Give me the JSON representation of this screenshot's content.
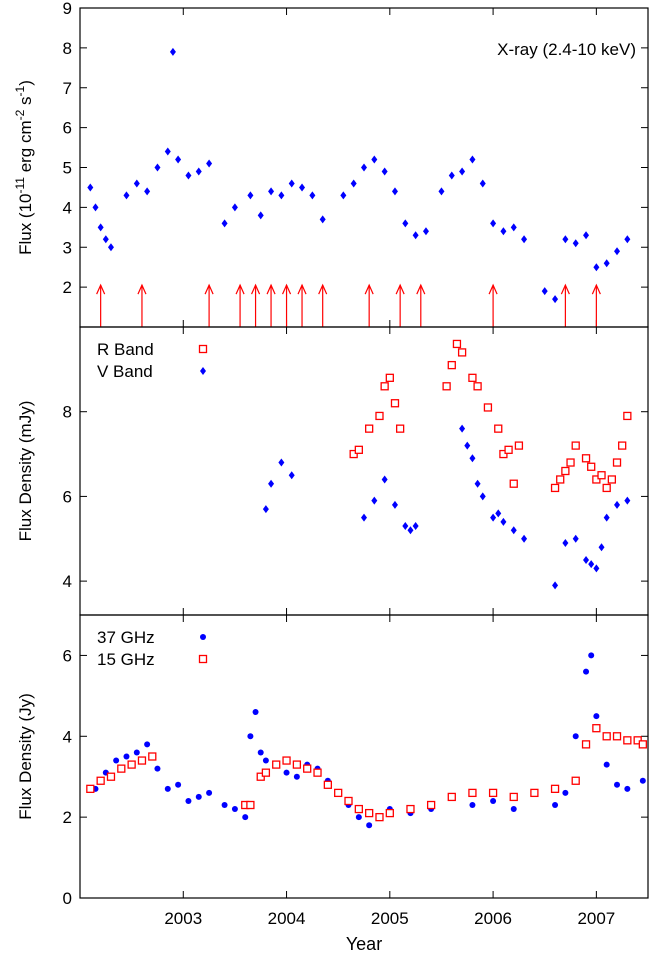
{
  "chart_data": [
    {
      "type": "scatter",
      "panel": "top",
      "annotation": "X-ray (2.4-10 keV)",
      "ylabel_parts": [
        "Flux (10",
        "-11",
        " erg cm",
        "-2",
        " s",
        "-1",
        ")"
      ],
      "ylim": [
        1,
        9
      ],
      "yticks": [
        2,
        3,
        4,
        5,
        6,
        7,
        8,
        9
      ],
      "xlim": [
        2002.0,
        2007.5
      ],
      "series": [
        {
          "color": "#0000ff",
          "marker": "diamond",
          "x": [
            2002.1,
            2002.15,
            2002.2,
            2002.25,
            2002.3,
            2002.45,
            2002.55,
            2002.65,
            2002.75,
            2002.85,
            2002.9,
            2002.95,
            2003.05,
            2003.15,
            2003.25,
            2003.4,
            2003.5,
            2003.65,
            2003.75,
            2003.85,
            2003.95,
            2004.05,
            2004.15,
            2004.25,
            2004.35,
            2004.55,
            2004.65,
            2004.75,
            2004.85,
            2004.95,
            2005.05,
            2005.15,
            2005.25,
            2005.35,
            2005.5,
            2005.6,
            2005.7,
            2005.8,
            2005.9,
            2006.0,
            2006.1,
            2006.2,
            2006.3,
            2006.5,
            2006.6,
            2006.7,
            2006.8,
            2006.9,
            2007.0,
            2007.1,
            2007.2,
            2007.3
          ],
          "y": [
            4.5,
            4.0,
            3.5,
            3.2,
            3.0,
            4.3,
            4.6,
            4.4,
            5.0,
            5.4,
            7.9,
            5.2,
            4.8,
            4.9,
            5.1,
            3.6,
            4.0,
            4.3,
            3.8,
            4.4,
            4.3,
            4.6,
            4.5,
            4.3,
            3.7,
            4.3,
            4.6,
            5.0,
            5.2,
            4.9,
            4.4,
            3.6,
            3.3,
            3.4,
            4.4,
            4.8,
            4.9,
            5.2,
            4.6,
            3.6,
            3.4,
            3.5,
            3.2,
            1.9,
            1.7,
            3.2,
            3.1,
            3.3,
            2.5,
            2.6,
            2.9,
            3.2
          ]
        }
      ],
      "arrows_x": [
        2002.2,
        2002.6,
        2003.25,
        2003.55,
        2003.7,
        2003.85,
        2004.0,
        2004.15,
        2004.35,
        2004.8,
        2005.1,
        2005.3,
        2006.0,
        2006.7,
        2007.0
      ],
      "arrow_color": "#ff0000"
    },
    {
      "type": "scatter",
      "panel": "middle",
      "ylabel": "Flux Density (mJy)",
      "ylim": [
        3.2,
        10.0
      ],
      "yticks": [
        4,
        6,
        8
      ],
      "xlim": [
        2002.0,
        2007.5
      ],
      "series": [
        {
          "name": "R Band",
          "color": "#ff0000",
          "marker": "square",
          "x": [
            2004.65,
            2004.7,
            2004.8,
            2004.9,
            2004.95,
            2005.0,
            2005.05,
            2005.1,
            2005.55,
            2005.6,
            2005.65,
            2005.7,
            2005.8,
            2005.85,
            2005.95,
            2006.05,
            2006.1,
            2006.15,
            2006.2,
            2006.25,
            2006.6,
            2006.65,
            2006.7,
            2006.75,
            2006.8,
            2006.9,
            2006.95,
            2007.0,
            2007.05,
            2007.1,
            2007.15,
            2007.2,
            2007.25,
            2007.3
          ],
          "y": [
            7.0,
            7.1,
            7.6,
            7.9,
            8.6,
            8.8,
            8.2,
            7.6,
            8.6,
            9.1,
            9.6,
            9.4,
            8.8,
            8.6,
            8.1,
            7.6,
            7.0,
            7.1,
            6.3,
            7.2,
            6.2,
            6.4,
            6.6,
            6.8,
            7.2,
            6.9,
            6.7,
            6.4,
            6.5,
            6.2,
            6.4,
            6.8,
            7.2,
            7.9
          ]
        },
        {
          "name": "V Band",
          "color": "#0000ff",
          "marker": "diamond",
          "x": [
            2003.8,
            2003.85,
            2003.95,
            2004.05,
            2004.75,
            2004.85,
            2004.95,
            2005.05,
            2005.15,
            2005.2,
            2005.25,
            2005.7,
            2005.75,
            2005.8,
            2005.85,
            2005.9,
            2006.0,
            2006.05,
            2006.1,
            2006.2,
            2006.3,
            2006.6,
            2006.7,
            2006.8,
            2006.9,
            2006.95,
            2007.0,
            2007.05,
            2007.1,
            2007.2,
            2007.3
          ],
          "y": [
            5.7,
            6.3,
            6.8,
            6.5,
            5.5,
            5.9,
            6.4,
            5.8,
            5.3,
            5.2,
            5.3,
            7.6,
            7.2,
            6.9,
            6.3,
            6.0,
            5.5,
            5.6,
            5.4,
            5.2,
            5.0,
            3.9,
            4.9,
            5.0,
            4.5,
            4.4,
            4.3,
            4.8,
            5.5,
            5.8,
            5.9
          ]
        }
      ]
    },
    {
      "type": "scatter",
      "panel": "bottom",
      "ylabel": "Flux Density (Jy)",
      "xlabel": "Year",
      "ylim": [
        0,
        7
      ],
      "yticks": [
        0,
        2,
        4,
        6
      ],
      "xlim": [
        2002.0,
        2007.5
      ],
      "xticks": [
        2003,
        2004,
        2005,
        2006,
        2007
      ],
      "series": [
        {
          "name": "37 GHz",
          "color": "#0000ff",
          "marker": "circle",
          "x": [
            2002.15,
            2002.25,
            2002.35,
            2002.45,
            2002.55,
            2002.65,
            2002.75,
            2002.85,
            2002.95,
            2003.05,
            2003.15,
            2003.25,
            2003.4,
            2003.5,
            2003.6,
            2003.65,
            2003.7,
            2003.75,
            2003.8,
            2003.9,
            2004.0,
            2004.1,
            2004.2,
            2004.3,
            2004.4,
            2004.5,
            2004.6,
            2004.7,
            2004.8,
            2004.9,
            2005.0,
            2005.2,
            2005.4,
            2005.6,
            2005.8,
            2006.0,
            2006.2,
            2006.4,
            2006.6,
            2006.7,
            2006.8,
            2006.9,
            2006.95,
            2007.0,
            2007.1,
            2007.2,
            2007.3,
            2007.45
          ],
          "y": [
            2.7,
            3.1,
            3.4,
            3.5,
            3.6,
            3.8,
            3.2,
            2.7,
            2.8,
            2.4,
            2.5,
            2.6,
            2.3,
            2.2,
            2.0,
            4.0,
            4.6,
            3.6,
            3.4,
            3.3,
            3.1,
            3.0,
            3.3,
            3.2,
            2.9,
            2.6,
            2.3,
            2.0,
            1.8,
            2.0,
            2.2,
            2.1,
            2.2,
            2.5,
            2.3,
            2.4,
            2.2,
            2.6,
            2.3,
            2.6,
            4.0,
            5.6,
            6.0,
            4.5,
            3.3,
            2.8,
            2.7,
            2.9
          ]
        },
        {
          "name": "15 GHz",
          "color": "#ff0000",
          "marker": "square",
          "x": [
            2002.1,
            2002.2,
            2002.3,
            2002.4,
            2002.5,
            2002.6,
            2002.7,
            2003.6,
            2003.65,
            2003.75,
            2003.8,
            2003.9,
            2004.0,
            2004.1,
            2004.2,
            2004.3,
            2004.4,
            2004.5,
            2004.6,
            2004.7,
            2004.8,
            2004.9,
            2005.0,
            2005.2,
            2005.4,
            2005.6,
            2005.8,
            2006.0,
            2006.2,
            2006.4,
            2006.6,
            2006.8,
            2006.9,
            2007.0,
            2007.1,
            2007.2,
            2007.3,
            2007.4,
            2007.45
          ],
          "y": [
            2.7,
            2.9,
            3.0,
            3.2,
            3.3,
            3.4,
            3.5,
            2.3,
            2.3,
            3.0,
            3.1,
            3.3,
            3.4,
            3.3,
            3.2,
            3.1,
            2.8,
            2.6,
            2.4,
            2.2,
            2.1,
            2.0,
            2.1,
            2.2,
            2.3,
            2.5,
            2.6,
            2.6,
            2.5,
            2.6,
            2.7,
            2.9,
            3.8,
            4.2,
            4.0,
            4.0,
            3.9,
            3.9,
            3.8
          ]
        }
      ]
    }
  ]
}
